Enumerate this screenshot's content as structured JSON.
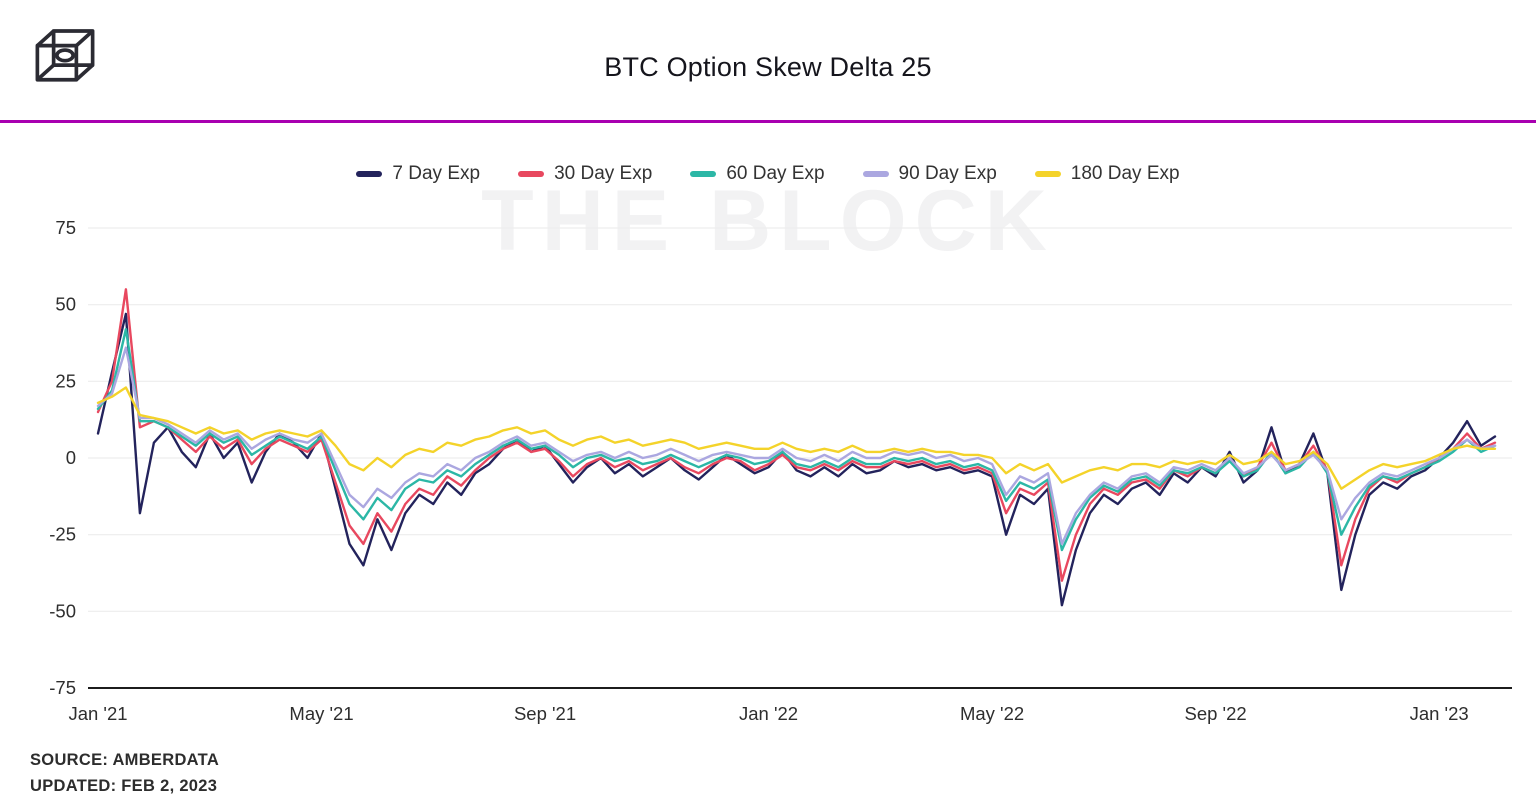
{
  "header": {
    "title": "BTC Option Skew Delta 25"
  },
  "footer": {
    "source": "SOURCE: AMBERDATA",
    "updated": "UPDATED: FEB 2, 2023"
  },
  "watermark": "THE BLOCK",
  "colors": {
    "accent_divider": "#a800b0",
    "axis_text": "#2e2e2e",
    "grid": "#ededed",
    "axis_line": "#1c1c1c",
    "watermark": "#f2f2f3"
  },
  "chart_data": {
    "type": "line",
    "title": "BTC Option Skew Delta 25",
    "xlabel": "",
    "ylabel": "",
    "x_unit": "months since Jan 2021",
    "ylim": [
      -75,
      75
    ],
    "grid": "horizontal",
    "legend_position": "top",
    "yticks": [
      75,
      50,
      25,
      0,
      -25,
      -50,
      -75
    ],
    "xticks": [
      {
        "pos": 0,
        "label": "Jan '21"
      },
      {
        "pos": 4,
        "label": "May '21"
      },
      {
        "pos": 8,
        "label": "Sep '21"
      },
      {
        "pos": 12,
        "label": "Jan '22"
      },
      {
        "pos": 16,
        "label": "May '22"
      },
      {
        "pos": 20,
        "label": "Sep '22"
      },
      {
        "pos": 24,
        "label": "Jan '23"
      }
    ],
    "x": [
      0,
      0.25,
      0.5,
      0.75,
      1,
      1.25,
      1.5,
      1.75,
      2,
      2.25,
      2.5,
      2.75,
      3,
      3.25,
      3.5,
      3.75,
      4,
      4.25,
      4.5,
      4.75,
      5,
      5.25,
      5.5,
      5.75,
      6,
      6.25,
      6.5,
      6.75,
      7,
      7.25,
      7.5,
      7.75,
      8,
      8.25,
      8.5,
      8.75,
      9,
      9.25,
      9.5,
      9.75,
      10,
      10.25,
      10.5,
      10.75,
      11,
      11.25,
      11.5,
      11.75,
      12,
      12.25,
      12.5,
      12.75,
      13,
      13.25,
      13.5,
      13.75,
      14,
      14.25,
      14.5,
      14.75,
      15,
      15.25,
      15.5,
      15.75,
      16,
      16.25,
      16.5,
      16.75,
      17,
      17.25,
      17.5,
      17.75,
      18,
      18.25,
      18.5,
      18.75,
      19,
      19.25,
      19.5,
      19.75,
      20,
      20.25,
      20.5,
      20.75,
      21,
      21.25,
      21.5,
      21.75,
      22,
      22.25,
      22.5,
      22.75,
      23,
      23.25,
      23.5,
      23.75,
      24,
      24.25,
      24.5,
      24.75,
      25
    ],
    "series": [
      {
        "name": "7 Day Exp",
        "color": "#23235c",
        "values": [
          8,
          28,
          47,
          -18,
          5,
          10,
          2,
          -3,
          8,
          0,
          5,
          -8,
          2,
          8,
          5,
          0,
          8,
          -10,
          -28,
          -35,
          -20,
          -30,
          -18,
          -12,
          -15,
          -8,
          -12,
          -5,
          -2,
          3,
          6,
          2,
          4,
          -2,
          -8,
          -3,
          0,
          -5,
          -2,
          -6,
          -3,
          0,
          -4,
          -7,
          -3,
          1,
          -2,
          -5,
          -3,
          2,
          -4,
          -6,
          -3,
          -6,
          -2,
          -5,
          -4,
          -1,
          -3,
          -2,
          -4,
          -3,
          -5,
          -4,
          -6,
          -25,
          -12,
          -15,
          -10,
          -48,
          -30,
          -18,
          -12,
          -15,
          -10,
          -8,
          -12,
          -5,
          -8,
          -3,
          -6,
          2,
          -8,
          -4,
          10,
          -5,
          -2,
          8,
          -5,
          -43,
          -25,
          -12,
          -8,
          -10,
          -6,
          -4,
          0,
          5,
          12,
          4,
          7
        ]
      },
      {
        "name": "30 Day Exp",
        "color": "#e8485f",
        "values": [
          15,
          25,
          55,
          10,
          12,
          10,
          6,
          2,
          7,
          3,
          6,
          -2,
          3,
          6,
          4,
          2,
          6,
          -8,
          -22,
          -28,
          -18,
          -24,
          -15,
          -10,
          -12,
          -6,
          -9,
          -4,
          0,
          3,
          5,
          2,
          3,
          -1,
          -6,
          -2,
          0,
          -3,
          -1,
          -4,
          -2,
          0,
          -3,
          -5,
          -2,
          0,
          -1,
          -4,
          -2,
          1,
          -3,
          -4,
          -2,
          -4,
          -1,
          -3,
          -3,
          -1,
          -2,
          -1,
          -3,
          -2,
          -4,
          -3,
          -5,
          -18,
          -10,
          -12,
          -8,
          -40,
          -25,
          -15,
          -10,
          -12,
          -8,
          -7,
          -10,
          -4,
          -6,
          -3,
          -5,
          0,
          -6,
          -3,
          5,
          -4,
          -2,
          4,
          -4,
          -35,
          -20,
          -10,
          -6,
          -8,
          -5,
          -3,
          0,
          3,
          8,
          3,
          5
        ]
      },
      {
        "name": "60 Day Exp",
        "color": "#2cb7a6",
        "values": [
          16,
          22,
          42,
          12,
          12,
          10,
          7,
          4,
          8,
          5,
          7,
          1,
          4,
          7,
          5,
          3,
          7,
          -4,
          -15,
          -20,
          -13,
          -17,
          -10,
          -7,
          -8,
          -4,
          -6,
          -2,
          1,
          4,
          6,
          3,
          4,
          1,
          -3,
          0,
          1,
          -1,
          0,
          -2,
          -1,
          1,
          -1,
          -3,
          -1,
          1,
          0,
          -2,
          -1,
          2,
          -2,
          -3,
          -1,
          -3,
          0,
          -2,
          -2,
          0,
          -1,
          0,
          -2,
          -1,
          -3,
          -2,
          -4,
          -14,
          -8,
          -10,
          -7,
          -30,
          -20,
          -13,
          -9,
          -11,
          -7,
          -6,
          -9,
          -4,
          -5,
          -3,
          -5,
          -1,
          -6,
          -4,
          2,
          -5,
          -3,
          2,
          -5,
          -25,
          -16,
          -9,
          -6,
          -7,
          -5,
          -3,
          -1,
          2,
          6,
          2,
          4
        ]
      },
      {
        "name": "90 Day Exp",
        "color": "#aba7e0",
        "values": [
          17,
          21,
          36,
          13,
          13,
          11,
          8,
          5,
          9,
          6,
          8,
          3,
          6,
          8,
          6,
          5,
          8,
          -2,
          -12,
          -16,
          -10,
          -13,
          -8,
          -5,
          -6,
          -2,
          -4,
          0,
          2,
          5,
          7,
          4,
          5,
          2,
          -1,
          1,
          2,
          0,
          2,
          0,
          1,
          3,
          1,
          -1,
          1,
          2,
          1,
          0,
          0,
          3,
          0,
          -1,
          1,
          -1,
          2,
          0,
          0,
          2,
          1,
          2,
          0,
          1,
          -1,
          0,
          -2,
          -12,
          -6,
          -8,
          -5,
          -28,
          -18,
          -12,
          -8,
          -10,
          -6,
          -5,
          -8,
          -3,
          -4,
          -2,
          -4,
          0,
          -5,
          -3,
          1,
          -4,
          -2,
          1,
          -4,
          -20,
          -13,
          -8,
          -5,
          -6,
          -4,
          -2,
          0,
          3,
          6,
          3,
          4
        ]
      },
      {
        "name": "180 Day Exp",
        "color": "#f4d32a",
        "values": [
          18,
          20,
          23,
          14,
          13,
          12,
          10,
          8,
          10,
          8,
          9,
          6,
          8,
          9,
          8,
          7,
          9,
          4,
          -2,
          -4,
          0,
          -3,
          1,
          3,
          2,
          5,
          4,
          6,
          7,
          9,
          10,
          8,
          9,
          6,
          4,
          6,
          7,
          5,
          6,
          4,
          5,
          6,
          5,
          3,
          4,
          5,
          4,
          3,
          3,
          5,
          3,
          2,
          3,
          2,
          4,
          2,
          2,
          3,
          2,
          3,
          2,
          2,
          1,
          1,
          0,
          -5,
          -2,
          -4,
          -2,
          -8,
          -6,
          -4,
          -3,
          -4,
          -2,
          -2,
          -3,
          -1,
          -2,
          -1,
          -2,
          1,
          -2,
          -1,
          2,
          -2,
          -1,
          2,
          -2,
          -10,
          -7,
          -4,
          -2,
          -3,
          -2,
          -1,
          1,
          3,
          4,
          3,
          3
        ]
      }
    ]
  }
}
